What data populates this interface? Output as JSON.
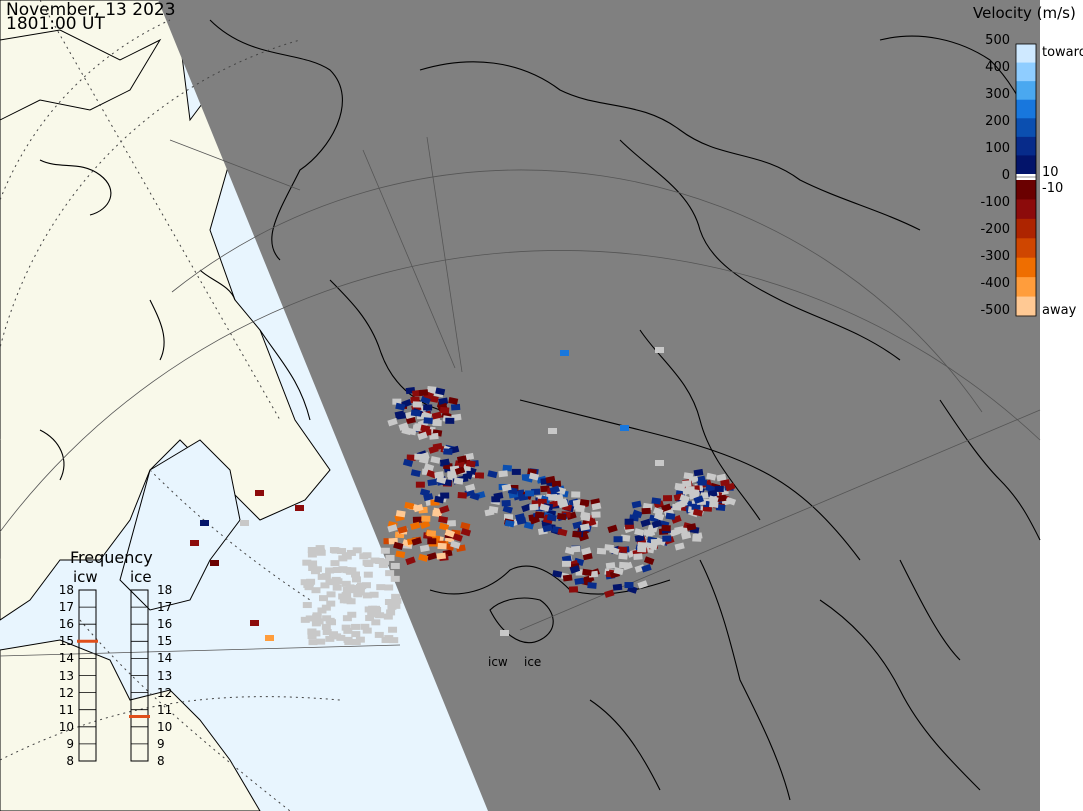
{
  "header": {
    "date": "November, 13 2023",
    "time": "1801:00 UT"
  },
  "velocity_scale": {
    "title": "Velocity (m/s)",
    "ticks": [
      "500",
      "400",
      "300",
      "200",
      "100",
      "0",
      "-100",
      "-200",
      "-300",
      "-400",
      "-500"
    ],
    "toward_label": "toward",
    "away_label": "away",
    "threshold_pos": "10",
    "threshold_neg": "-10",
    "toward_colors": [
      "#cfe9ff",
      "#8fcdff",
      "#4aa8f0",
      "#1877dd",
      "#0b4fb0",
      "#072b8a",
      "#03146a"
    ],
    "away_colors": [
      "#6a0000",
      "#8c0b0b",
      "#ad2400",
      "#cf4600",
      "#ef6e00",
      "#ff9d3c",
      "#ffc994"
    ]
  },
  "frequency": {
    "title": "Frequency",
    "columns": [
      {
        "name": "icw",
        "value_mhz": 15
      },
      {
        "name": "ice",
        "value_mhz": 10.6
      }
    ],
    "ticks": [
      "18",
      "17",
      "16",
      "15",
      "14",
      "13",
      "12",
      "11",
      "10",
      "9",
      "8"
    ],
    "marker_color": "#e04f1a"
  },
  "radars": {
    "labels": [
      "icw",
      "ice"
    ]
  },
  "colors": {
    "night_shade": "#808080",
    "land_day": "#f9f9ea",
    "ocean_day": "#e8f5fe",
    "no_scatter": "#c8c8c8"
  }
}
